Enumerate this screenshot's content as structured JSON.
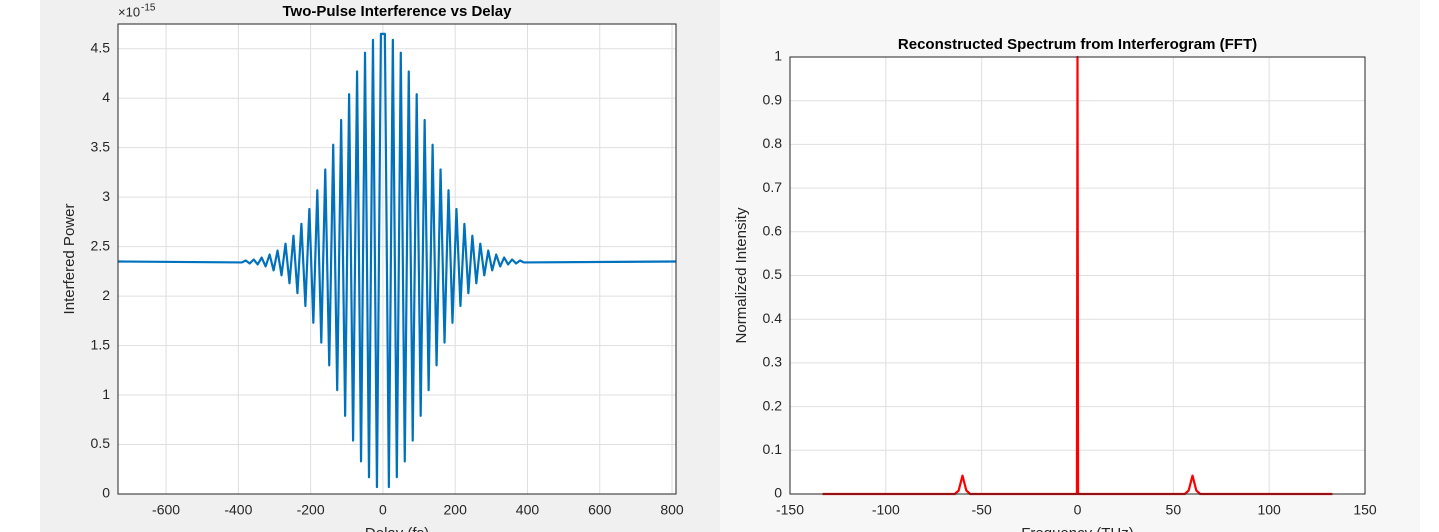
{
  "chart_data": [
    {
      "type": "line",
      "title": "Two-Pulse Interference vs Delay",
      "xlabel": "Delay (fs)",
      "ylabel": "Interfered Power",
      "y_multiplier": "×10",
      "y_multiplier_exponent": "-15",
      "xlim": [
        -733,
        811
      ],
      "xticks": [
        -600,
        -400,
        -200,
        0,
        200,
        400,
        600,
        800
      ],
      "ylim": [
        0,
        4.75
      ],
      "yticks": [
        0,
        0.5,
        1,
        1.5,
        2,
        2.5,
        3,
        3.5,
        4,
        4.5
      ],
      "grid": true,
      "series": [
        {
          "color": "#0072bd",
          "x": [
            -733,
            -390.5,
            -379.5,
            -368.5,
            -357.5,
            -346.5,
            -335.5,
            -324.5,
            -313.5,
            -302.5,
            -291.5,
            -280.5,
            -269.5,
            -258.5,
            -247.5,
            -236.5,
            -225.5,
            -214.5,
            -203.5,
            -192.5,
            -181.5,
            -170.5,
            -159.5,
            -148.5,
            -137.5,
            -126.5,
            -115.5,
            -104.5,
            -93.5,
            -82.5,
            -71.5,
            -60.5,
            -49.5,
            -38.5,
            -27.5,
            -16.5,
            -5.5,
            5.5,
            16.5,
            27.5,
            38.5,
            49.5,
            60.5,
            71.5,
            82.5,
            93.5,
            104.5,
            115.5,
            126.5,
            137.5,
            148.5,
            159.5,
            170.5,
            181.5,
            192.5,
            203.5,
            214.5,
            225.5,
            236.5,
            247.5,
            258.5,
            269.5,
            280.5,
            291.5,
            302.5,
            313.5,
            324.5,
            335.5,
            346.5,
            357.5,
            368.5,
            379.5,
            390.5,
            811
          ],
          "values": [
            2.35,
            2.34,
            2.36,
            2.33,
            2.37,
            2.32,
            2.39,
            2.3,
            2.42,
            2.26,
            2.46,
            2.21,
            2.53,
            2.13,
            2.61,
            2.03,
            2.73,
            1.9,
            2.88,
            1.73,
            3.07,
            1.53,
            3.28,
            1.3,
            3.53,
            1.05,
            3.78,
            0.79,
            4.04,
            0.54,
            4.27,
            0.33,
            4.46,
            0.17,
            4.59,
            0.07,
            4.65,
            4.65,
            0.07,
            4.59,
            0.17,
            4.46,
            0.33,
            4.27,
            0.54,
            4.04,
            0.79,
            3.78,
            1.05,
            3.53,
            1.3,
            3.28,
            1.53,
            3.07,
            1.73,
            2.88,
            1.9,
            2.73,
            2.03,
            2.61,
            2.13,
            2.53,
            2.21,
            2.46,
            2.26,
            2.42,
            2.3,
            2.39,
            2.32,
            2.37,
            2.33,
            2.36,
            2.34,
            2.35
          ]
        }
      ]
    },
    {
      "type": "line",
      "title": "Reconstructed Spectrum from Interferogram (FFT)",
      "xlabel": "Frequency (THz)",
      "ylabel": "Normalized Intensity",
      "xlim": [
        -150,
        150
      ],
      "xticks": [
        -150,
        -100,
        -50,
        0,
        50,
        100,
        150
      ],
      "ylim": [
        0,
        1
      ],
      "yticks": [
        0,
        0.1,
        0.2,
        0.3,
        0.4,
        0.5,
        0.6,
        0.7,
        0.8,
        0.9,
        1
      ],
      "grid": true,
      "series": [
        {
          "color": "#ff0000",
          "x": [
            -133,
            -64,
            -62,
            -61,
            -60,
            -59,
            -58,
            -56,
            -0.3,
            0,
            0.3,
            56,
            58,
            59,
            60,
            61,
            62,
            64,
            133
          ],
          "values": [
            0,
            0,
            0.008,
            0.025,
            0.042,
            0.025,
            0.008,
            0,
            0,
            1,
            0,
            0,
            0.008,
            0.025,
            0.042,
            0.025,
            0.008,
            0,
            0
          ]
        }
      ]
    }
  ]
}
